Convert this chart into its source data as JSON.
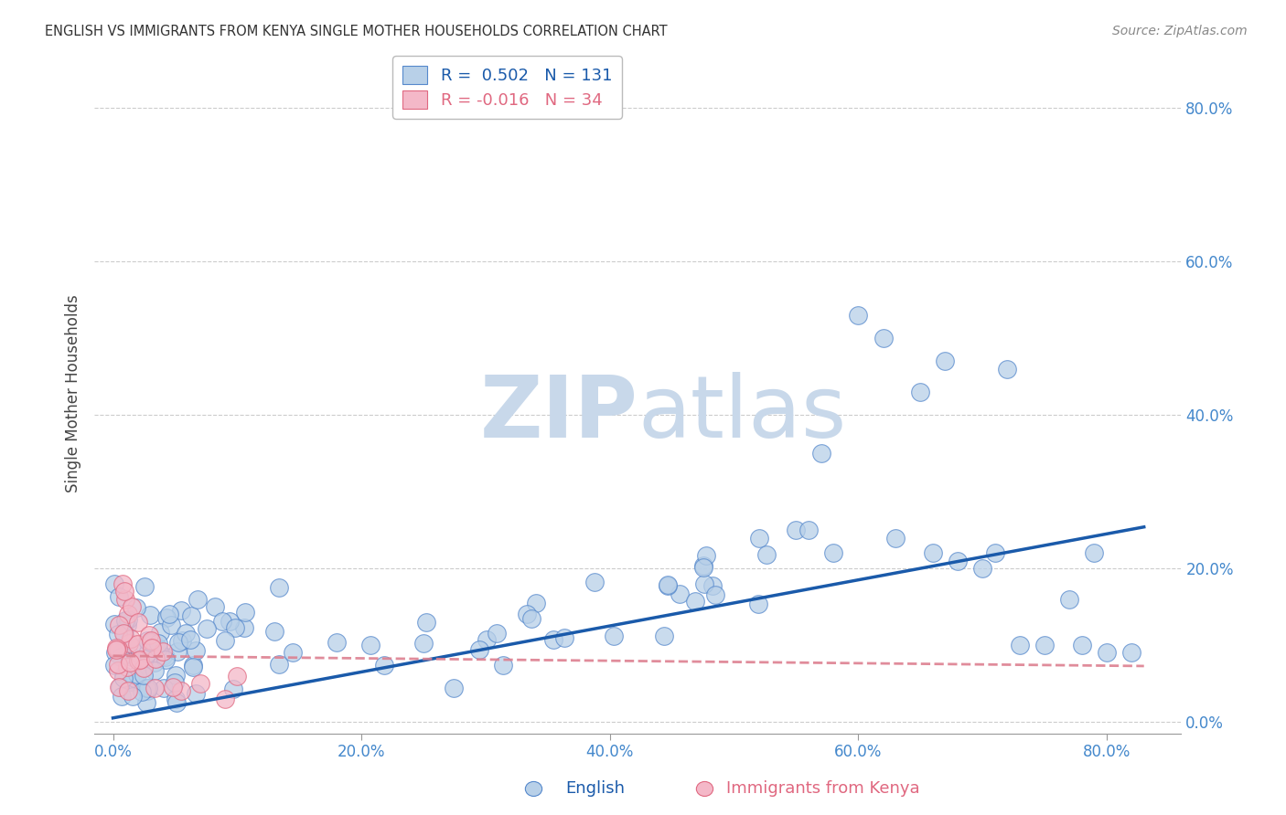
{
  "title": "ENGLISH VS IMMIGRANTS FROM KENYA SINGLE MOTHER HOUSEHOLDS CORRELATION CHART",
  "source": "Source: ZipAtlas.com",
  "ylabel_label": "Single Mother Households",
  "x_tick_positions": [
    0.0,
    0.2,
    0.4,
    0.6,
    0.8
  ],
  "y_tick_positions": [
    0.0,
    0.2,
    0.4,
    0.6,
    0.8
  ],
  "xlim": [
    -0.015,
    0.86
  ],
  "ylim": [
    -0.015,
    0.87
  ],
  "english_R": 0.502,
  "english_N": 131,
  "kenya_R": -0.016,
  "kenya_N": 34,
  "english_face_color": "#b8d0e8",
  "english_edge_color": "#5588cc",
  "kenya_face_color": "#f4b8c8",
  "kenya_edge_color": "#e06880",
  "english_line_color": "#1a5aaa",
  "kenya_line_color": "#dd8090",
  "watermark_zip_color": "#c8d8ea",
  "watermark_atlas_color": "#c8d8ea",
  "title_color": "#333333",
  "source_color": "#888888",
  "tick_color": "#4488cc",
  "ylabel_color": "#444444",
  "legend_border_color": "#bbbbbb",
  "grid_color": "#cccccc",
  "bottom_spine_color": "#999999"
}
